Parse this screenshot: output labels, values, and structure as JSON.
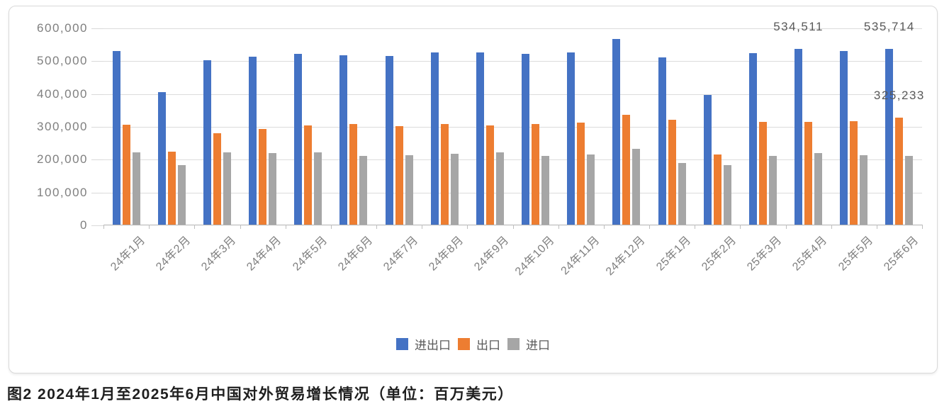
{
  "figure_caption": "图2  2024年1月至2025年6月中国对外贸易增长情况（单位：百万美元）",
  "chart_data": {
    "type": "bar",
    "unit": "百万美元",
    "categories": [
      "24年1月",
      "24年2月",
      "24年3月",
      "24年4月",
      "24年5月",
      "24年6月",
      "24年7月",
      "24年8月",
      "24年9月",
      "24年10月",
      "24年11月",
      "24年12月",
      "25年1月",
      "25年2月",
      "25年3月",
      "25年4月",
      "25年5月",
      "25年6月"
    ],
    "series": [
      {
        "key": "total",
        "name": "进出口",
        "color": "#4472C4",
        "values": [
          528000,
          404000,
          500000,
          512000,
          521000,
          515000,
          513000,
          524000,
          524000,
          521000,
          525000,
          566000,
          510000,
          396000,
          523000,
          534511,
          528000,
          535714
        ]
      },
      {
        "key": "exports",
        "name": "出口",
        "color": "#ED7D31",
        "values": [
          304000,
          222000,
          279000,
          292000,
          302000,
          307000,
          299000,
          307000,
          303000,
          307000,
          310000,
          335000,
          320000,
          214000,
          312000,
          314000,
          315000,
          325233
        ]
      },
      {
        "key": "imports",
        "name": "进口",
        "color": "#A6A6A6",
        "values": [
          221000,
          181000,
          221000,
          219000,
          221000,
          209000,
          212000,
          216000,
          220000,
          210000,
          213000,
          230000,
          188000,
          181000,
          210000,
          218000,
          212000,
          210000
        ]
      }
    ],
    "data_labels": [
      {
        "series": 0,
        "category": 15,
        "text": "534,511"
      },
      {
        "series": 0,
        "category": 17,
        "text": "535,714"
      },
      {
        "series": 1,
        "category": 17,
        "text": "325,233"
      }
    ],
    "y_axis": {
      "min": 0,
      "max": 600000,
      "tick_interval": 100000,
      "tick_labels": [
        "0",
        "100,000",
        "200,000",
        "300,000",
        "400,000",
        "500,000",
        "600,000"
      ]
    },
    "x_axis": {
      "label_rotation_deg": -45
    },
    "legend_position": "bottom",
    "grid": true
  }
}
